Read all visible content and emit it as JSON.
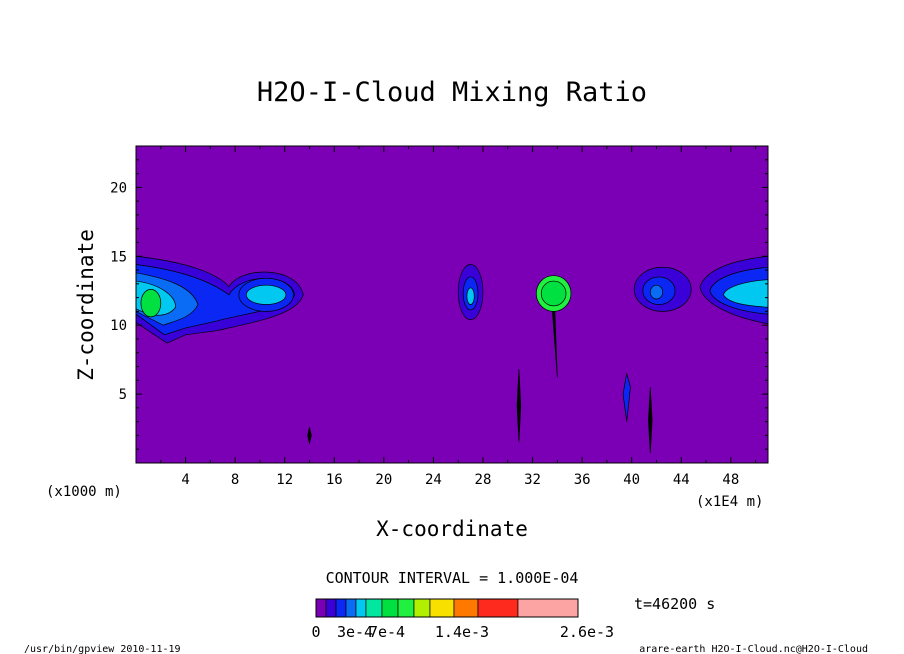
{
  "chart_data": {
    "type": "heatmap",
    "title": "H2O-I-Cloud Mixing Ratio",
    "xlabel": "X-coordinate",
    "ylabel": "Z-coordinate",
    "x_unit_left": "(x1000 m)",
    "x_unit_right": "(x1E4 m)",
    "xlim": [
      0,
      51
    ],
    "ylim": [
      0,
      23
    ],
    "xticks": [
      "4",
      "8",
      "12",
      "16",
      "20",
      "24",
      "28",
      "32",
      "36",
      "40",
      "44",
      "48"
    ],
    "yticks": [
      "5",
      "10",
      "15",
      "20"
    ],
    "contour_interval": "CONTOUR INTERVAL = 1.000E-04",
    "time_label": "t=46200 s",
    "colorbar": {
      "labels": [
        "0",
        "3e-4",
        "7e-4",
        "1.4e-3",
        "2.6e-3"
      ],
      "colors": [
        "#7b00b5",
        "#3a00d8",
        "#0a27f3",
        "#0a6cf5",
        "#00c8f0",
        "#00e8a0",
        "#00e040",
        "#20f040",
        "#b0f000",
        "#f8e000",
        "#ff7800",
        "#ff2a1e",
        "#fca3a3"
      ]
    },
    "background_color": "#7b00b5",
    "clouds": [
      {
        "x": 1.5,
        "z": 11.8,
        "max": "1.4e-3"
      },
      {
        "x": 10.5,
        "z": 12.2,
        "max": "5e-4"
      },
      {
        "x": 27.0,
        "z": 12.2,
        "max": "5e-4"
      },
      {
        "x": 33.5,
        "z": 12.3,
        "max": "1.4e-3"
      },
      {
        "x": 42.0,
        "z": 12.4,
        "max": "3e-4"
      },
      {
        "x": 49.5,
        "z": 12.0,
        "max": "5e-4"
      }
    ]
  },
  "footer": {
    "left": "/usr/bin/gpview  2010-11-19",
    "right": "arare-earth_H2O-I-Cloud.nc@H2O-I-Cloud"
  }
}
